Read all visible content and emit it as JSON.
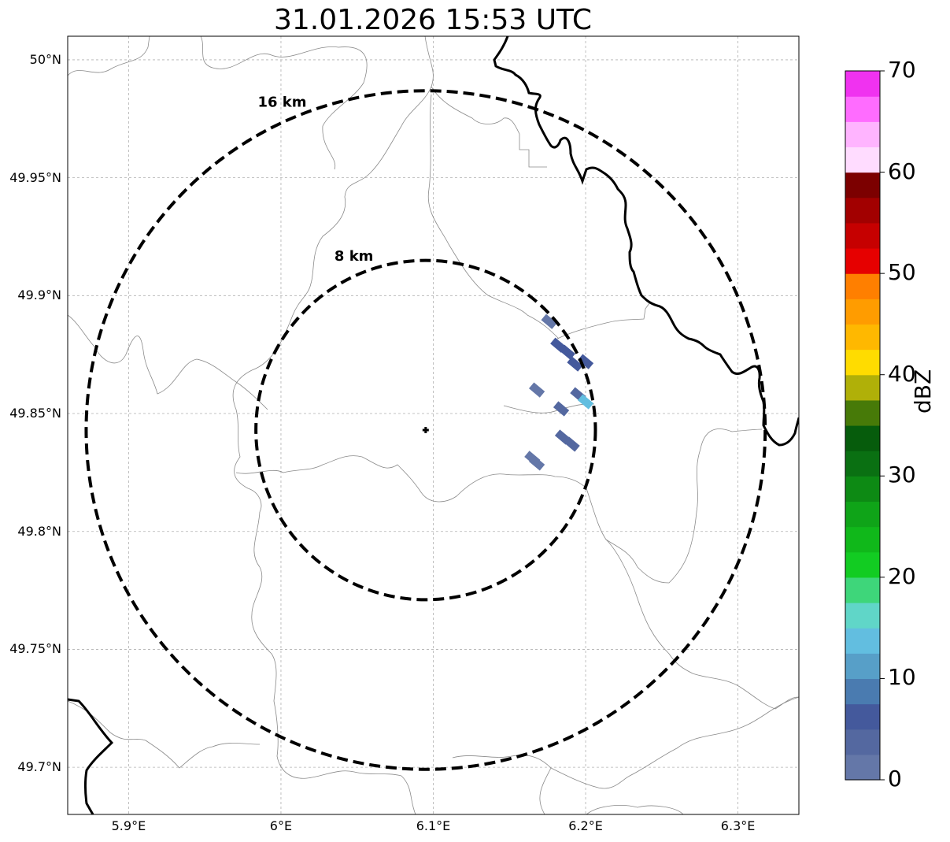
{
  "title": "31.01.2026 15:53 UTC",
  "map": {
    "lon_range": [
      5.86,
      6.34
    ],
    "lat_range": [
      49.68,
      50.01
    ],
    "radar_site": {
      "lon": 6.095,
      "lat": 49.843
    },
    "grid": true,
    "lat_ticks": [
      {
        "value": 50.0,
        "label": "50°N"
      },
      {
        "value": 49.95,
        "label": "49.95°N"
      },
      {
        "value": 49.9,
        "label": "49.9°N"
      },
      {
        "value": 49.85,
        "label": "49.85°N"
      },
      {
        "value": 49.8,
        "label": "49.8°N"
      },
      {
        "value": 49.75,
        "label": "49.75°N"
      },
      {
        "value": 49.7,
        "label": "49.7°N"
      }
    ],
    "lon_ticks": [
      {
        "value": 5.9,
        "label": "5.9°E"
      },
      {
        "value": 6.0,
        "label": "6°E"
      },
      {
        "value": 6.1,
        "label": "6.1°E"
      },
      {
        "value": 6.2,
        "label": "6.2°E"
      },
      {
        "value": 6.3,
        "label": "6.3°E"
      }
    ],
    "range_rings": [
      {
        "radius_km": 16,
        "label": "16 km"
      },
      {
        "radius_km": 8,
        "label": "8 km"
      }
    ],
    "echoes_dbz": [
      {
        "lon": 6.176,
        "lat": 49.889,
        "dbz": 2
      },
      {
        "lon": 6.182,
        "lat": 49.879,
        "dbz": 5
      },
      {
        "lon": 6.188,
        "lat": 49.876,
        "dbz": 6
      },
      {
        "lon": 6.193,
        "lat": 49.871,
        "dbz": 7
      },
      {
        "lon": 6.2,
        "lat": 49.872,
        "dbz": 6
      },
      {
        "lon": 6.168,
        "lat": 49.86,
        "dbz": 2
      },
      {
        "lon": 6.184,
        "lat": 49.852,
        "dbz": 3
      },
      {
        "lon": 6.195,
        "lat": 49.858,
        "dbz": 4
      },
      {
        "lon": 6.2,
        "lat": 49.855,
        "dbz": 13
      },
      {
        "lon": 6.185,
        "lat": 49.84,
        "dbz": 3
      },
      {
        "lon": 6.191,
        "lat": 49.837,
        "dbz": 3
      },
      {
        "lon": 6.165,
        "lat": 49.831,
        "dbz": 2
      },
      {
        "lon": 6.168,
        "lat": 49.829,
        "dbz": 1
      }
    ]
  },
  "colorbar": {
    "unit": "dBZ",
    "min": 0,
    "max": 70,
    "step": 2.5,
    "colors": [
      "#6477a8",
      "#5468a0",
      "#44599c",
      "#4a7bb0",
      "#579fc8",
      "#62bee0",
      "#60d6c8",
      "#3ed67a",
      "#12cc22",
      "#10b81a",
      "#0fa418",
      "#0d8a14",
      "#0a7012",
      "#065c0c",
      "#477a08",
      "#b0b008",
      "#ffdc00",
      "#ffb800",
      "#ff9c00",
      "#ff7f00",
      "#e60000",
      "#c60000",
      "#a20000",
      "#7c0000",
      "#ffdcff",
      "#ffb4ff",
      "#ff6cff",
      "#f032f0"
    ],
    "tick_labels": [
      "0",
      "10",
      "20",
      "30",
      "40",
      "50",
      "60",
      "70"
    ]
  }
}
